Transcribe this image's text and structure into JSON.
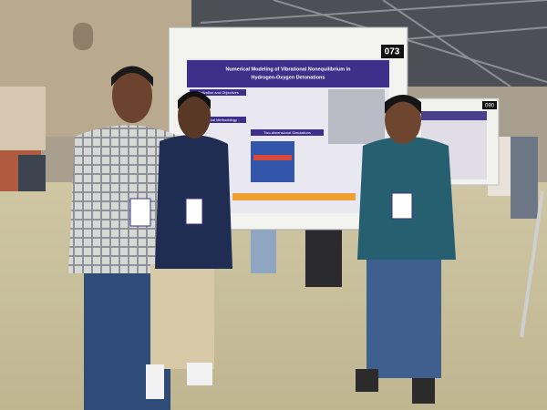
{
  "scene": {
    "board_numbers": [
      "073",
      "090"
    ],
    "poster": {
      "title_line1": "Numerical Modeling of Vibrational Nonequilibrium in",
      "title_line2": "Hydrogen-Oxygen Detonations",
      "sections": [
        "Motivation and Objectives",
        "Numerical Methodology",
        "Two-dimensional Simulations"
      ]
    }
  }
}
